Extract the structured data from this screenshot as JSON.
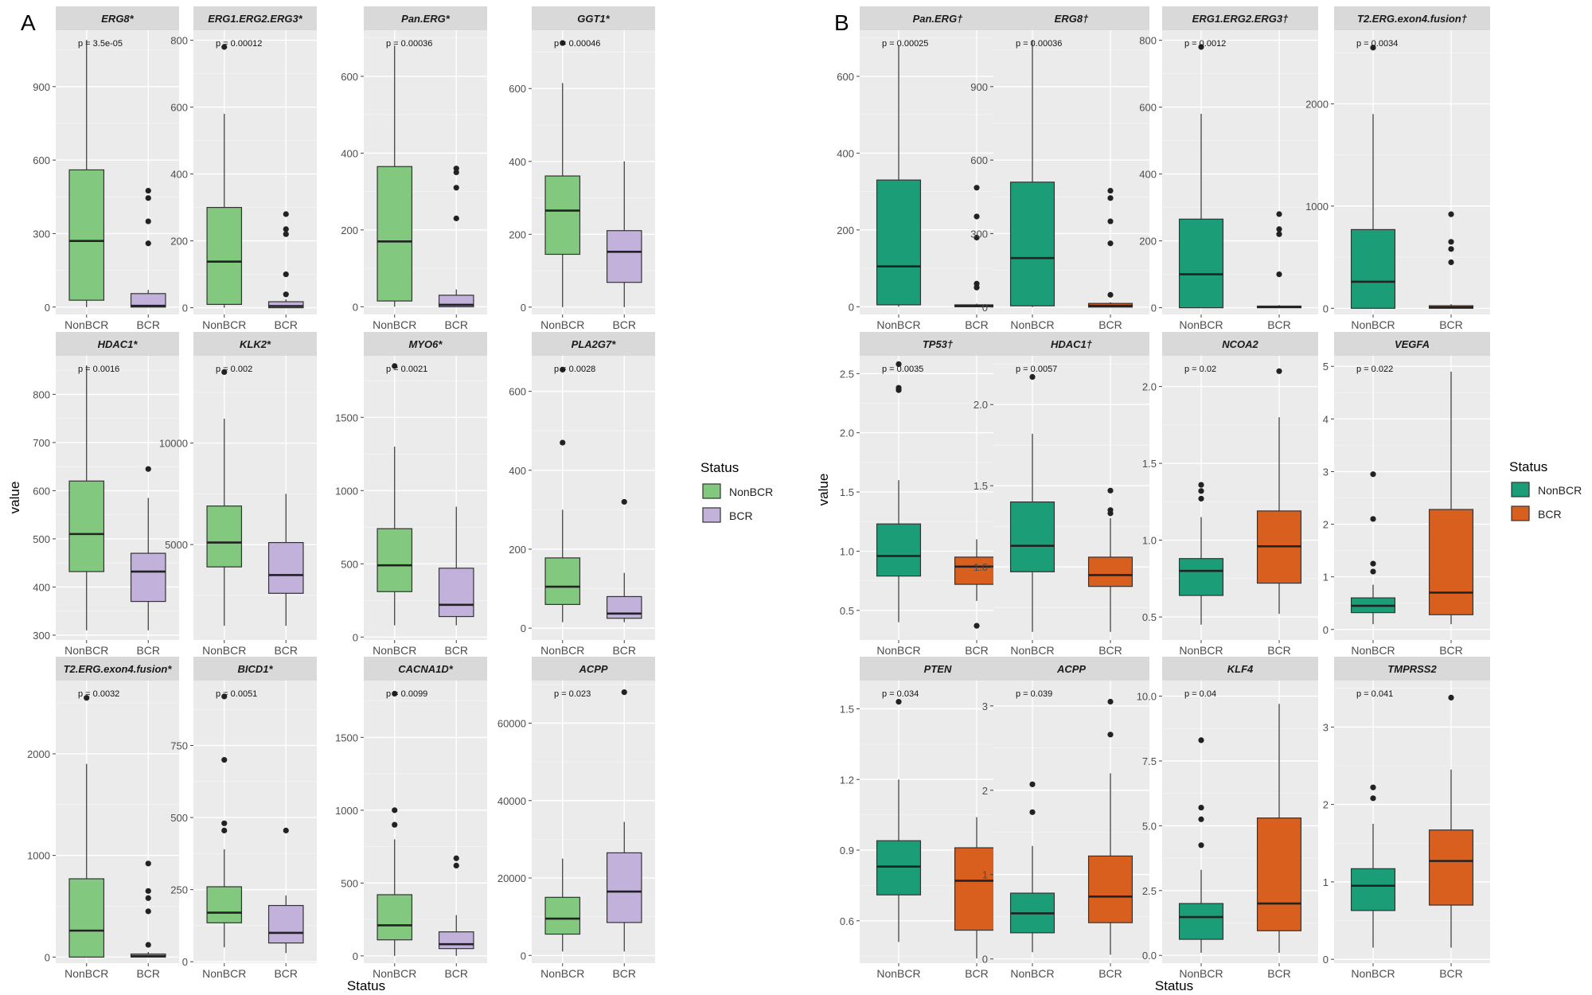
{
  "panels": {
    "A": {
      "label": "A",
      "y_title": "value",
      "x_title": "Status",
      "legend_title": "Status"
    },
    "B": {
      "label": "B",
      "y_title": "value",
      "x_title": "Status",
      "legend_title": "Status"
    }
  },
  "palette": {
    "A": {
      "NonBCR": "#82c97f",
      "BCR": "#c1b1db"
    },
    "B": {
      "NonBCR": "#1b9e77",
      "BCR": "#d95f1f"
    },
    "panel_bg": "#ebebeb",
    "strip_bg": "#d9d9d9",
    "grid": "#ffffff"
  },
  "chart_data": [
    {
      "panel": "A",
      "row": 0,
      "col": 0,
      "type": "boxplot",
      "title": "ERG8*",
      "pvalue": "p = 3.5e-05",
      "ylim": [
        -30,
        1130
      ],
      "yticks": [
        0,
        300,
        600,
        900
      ],
      "categories": [
        "NonBCR",
        "BCR"
      ],
      "boxes": [
        {
          "q1": 28,
          "median": 270,
          "q3": 560,
          "lower": 0,
          "upper": 1090,
          "outliers": []
        },
        {
          "q1": 0,
          "median": 5,
          "q3": 55,
          "lower": 0,
          "upper": 70,
          "outliers": [
            475,
            445,
            350,
            260
          ]
        }
      ]
    },
    {
      "panel": "A",
      "row": 0,
      "col": 1,
      "type": "boxplot",
      "title": "ERG1.ERG2.ERG3*",
      "pvalue": "p = 0.00012",
      "ylim": [
        -20,
        830
      ],
      "yticks": [
        0,
        200,
        400,
        600,
        800
      ],
      "categories": [
        "NonBCR",
        "BCR"
      ],
      "boxes": [
        {
          "q1": 10,
          "median": 138,
          "q3": 300,
          "lower": 0,
          "upper": 580,
          "outliers": [
            780
          ]
        },
        {
          "q1": 0,
          "median": 5,
          "q3": 18,
          "lower": 0,
          "upper": 25,
          "outliers": [
            280,
            235,
            220,
            100,
            40
          ]
        }
      ]
    },
    {
      "panel": "A",
      "row": 0,
      "col": 2,
      "type": "boxplot",
      "title": "Pan.ERG*",
      "pvalue": "p = 0.00036",
      "ylim": [
        -20,
        720
      ],
      "yticks": [
        0,
        200,
        400,
        600
      ],
      "categories": [
        "NonBCR",
        "BCR"
      ],
      "boxes": [
        {
          "q1": 15,
          "median": 170,
          "q3": 365,
          "lower": 0,
          "upper": 680,
          "outliers": []
        },
        {
          "q1": 0,
          "median": 5,
          "q3": 30,
          "lower": 0,
          "upper": 45,
          "outliers": [
            360,
            350,
            310,
            230
          ]
        }
      ]
    },
    {
      "panel": "A",
      "row": 0,
      "col": 3,
      "type": "boxplot",
      "title": "GGT1*",
      "pvalue": "p = 0.00046",
      "ylim": [
        -20,
        760
      ],
      "yticks": [
        0,
        200,
        400,
        600
      ],
      "categories": [
        "NonBCR",
        "BCR"
      ],
      "boxes": [
        {
          "q1": 145,
          "median": 265,
          "q3": 360,
          "lower": 0,
          "upper": 615,
          "outliers": [
            725
          ]
        },
        {
          "q1": 68,
          "median": 152,
          "q3": 210,
          "lower": 0,
          "upper": 400,
          "outliers": []
        }
      ]
    },
    {
      "panel": "A",
      "row": 1,
      "col": 0,
      "type": "boxplot",
      "title": "HDAC1*",
      "pvalue": "p = 0.0016",
      "ylim": [
        290,
        880
      ],
      "yticks": [
        300,
        400,
        500,
        600,
        700,
        800
      ],
      "categories": [
        "NonBCR",
        "BCR"
      ],
      "boxes": [
        {
          "q1": 432,
          "median": 510,
          "q3": 620,
          "lower": 310,
          "upper": 860,
          "outliers": []
        },
        {
          "q1": 370,
          "median": 432,
          "q3": 470,
          "lower": 310,
          "upper": 585,
          "outliers": [
            645
          ]
        }
      ]
    },
    {
      "panel": "A",
      "row": 1,
      "col": 1,
      "type": "boxplot",
      "title": "KLK2*",
      "pvalue": "p = 0.002",
      "ylim": [
        300,
        14300
      ],
      "yticks": [
        5000,
        10000
      ],
      "categories": [
        "NonBCR",
        "BCR"
      ],
      "boxes": [
        {
          "q1": 3900,
          "median": 5100,
          "q3": 6900,
          "lower": 1000,
          "upper": 11200,
          "outliers": [
            13500
          ]
        },
        {
          "q1": 2600,
          "median": 3500,
          "q3": 5100,
          "lower": 1000,
          "upper": 7500,
          "outliers": []
        }
      ]
    },
    {
      "panel": "A",
      "row": 1,
      "col": 2,
      "type": "boxplot",
      "title": "MYO6*",
      "pvalue": "p = 0.0021",
      "ylim": [
        -20,
        1920
      ],
      "yticks": [
        0,
        500,
        1000,
        1500
      ],
      "categories": [
        "NonBCR",
        "BCR"
      ],
      "boxes": [
        {
          "q1": 310,
          "median": 490,
          "q3": 740,
          "lower": 80,
          "upper": 1300,
          "outliers": [
            1850
          ]
        },
        {
          "q1": 140,
          "median": 220,
          "q3": 470,
          "lower": 80,
          "upper": 890,
          "outliers": []
        }
      ]
    },
    {
      "panel": "A",
      "row": 1,
      "col": 3,
      "type": "boxplot",
      "title": "PLA2G7*",
      "pvalue": "p = 0.0028",
      "ylim": [
        -30,
        690
      ],
      "yticks": [
        0,
        200,
        400,
        600
      ],
      "categories": [
        "NonBCR",
        "BCR"
      ],
      "boxes": [
        {
          "q1": 60,
          "median": 105,
          "q3": 178,
          "lower": 15,
          "upper": 300,
          "outliers": [
            655,
            470
          ]
        },
        {
          "q1": 25,
          "median": 37,
          "q3": 80,
          "lower": 15,
          "upper": 140,
          "outliers": [
            320
          ]
        }
      ]
    },
    {
      "panel": "A",
      "row": 2,
      "col": 0,
      "type": "boxplot",
      "title": "T2.ERG.exon4.fusion*",
      "pvalue": "p = 0.0032",
      "ylim": [
        -60,
        2720
      ],
      "yticks": [
        0,
        1000,
        2000
      ],
      "categories": [
        "NonBCR",
        "BCR"
      ],
      "boxes": [
        {
          "q1": 0,
          "median": 260,
          "q3": 770,
          "lower": 0,
          "upper": 1900,
          "outliers": [
            2550
          ]
        },
        {
          "q1": 0,
          "median": 10,
          "q3": 30,
          "lower": 0,
          "upper": 50,
          "outliers": [
            920,
            650,
            580,
            450,
            120
          ]
        }
      ]
    },
    {
      "panel": "A",
      "row": 2,
      "col": 1,
      "type": "boxplot",
      "title": "BICD1*",
      "pvalue": "p = 0.0051",
      "ylim": [
        -5,
        975
      ],
      "yticks": [
        0,
        250,
        500,
        750
      ],
      "categories": [
        "NonBCR",
        "BCR"
      ],
      "boxes": [
        {
          "q1": 135,
          "median": 170,
          "q3": 260,
          "lower": 50,
          "upper": 390,
          "outliers": [
            920,
            700,
            480,
            455
          ]
        },
        {
          "q1": 65,
          "median": 100,
          "q3": 195,
          "lower": 30,
          "upper": 230,
          "outliers": [
            455
          ]
        }
      ]
    },
    {
      "panel": "A",
      "row": 2,
      "col": 2,
      "type": "boxplot",
      "title": "CACNA1D*",
      "pvalue": "p = 0.0099",
      "ylim": [
        -50,
        1890
      ],
      "yticks": [
        0,
        500,
        1000,
        1500
      ],
      "categories": [
        "NonBCR",
        "BCR"
      ],
      "boxes": [
        {
          "q1": 110,
          "median": 210,
          "q3": 420,
          "lower": 0,
          "upper": 800,
          "outliers": [
            1800,
            1000,
            900
          ]
        },
        {
          "q1": 50,
          "median": 80,
          "q3": 165,
          "lower": 0,
          "upper": 280,
          "outliers": [
            670,
            620
          ]
        }
      ]
    },
    {
      "panel": "A",
      "row": 2,
      "col": 3,
      "type": "boxplot",
      "title": "ACPP",
      "pvalue": "p = 0.023",
      "ylim": [
        -2000,
        71000
      ],
      "yticks": [
        0,
        20000,
        40000,
        60000
      ],
      "categories": [
        "NonBCR",
        "BCR"
      ],
      "boxes": [
        {
          "q1": 5500,
          "median": 9500,
          "q3": 15000,
          "lower": 1000,
          "upper": 25000,
          "outliers": []
        },
        {
          "q1": 8500,
          "median": 16500,
          "q3": 26500,
          "lower": 1000,
          "upper": 34500,
          "outliers": [
            68000
          ]
        }
      ]
    },
    {
      "panel": "B",
      "row": 0,
      "col": 0,
      "type": "boxplot",
      "title": "Pan.ERG†",
      "pvalue": "p = 0.00025",
      "ylim": [
        -20,
        720
      ],
      "yticks": [
        0,
        200,
        400,
        600
      ],
      "categories": [
        "NonBCR",
        "BCR"
      ],
      "boxes": [
        {
          "q1": 5,
          "median": 105,
          "q3": 330,
          "lower": 0,
          "upper": 680,
          "outliers": []
        },
        {
          "q1": 0,
          "median": 2,
          "q3": 5,
          "lower": 0,
          "upper": 8,
          "outliers": [
            310,
            235,
            180,
            60,
            50
          ]
        }
      ]
    },
    {
      "panel": "B",
      "row": 0,
      "col": 1,
      "type": "boxplot",
      "title": "ERG8†",
      "pvalue": "p = 0.00036",
      "ylim": [
        -30,
        1130
      ],
      "yticks": [
        0,
        300,
        600,
        900
      ],
      "categories": [
        "NonBCR",
        "BCR"
      ],
      "boxes": [
        {
          "q1": 5,
          "median": 200,
          "q3": 510,
          "lower": 0,
          "upper": 1090,
          "outliers": []
        },
        {
          "q1": 0,
          "median": 5,
          "q3": 15,
          "lower": 0,
          "upper": 20,
          "outliers": [
            475,
            445,
            350,
            260,
            50
          ]
        }
      ]
    },
    {
      "panel": "B",
      "row": 0,
      "col": 2,
      "type": "boxplot",
      "title": "ERG1.ERG2.ERG3†",
      "pvalue": "p = 0.0012",
      "ylim": [
        -20,
        830
      ],
      "yticks": [
        0,
        200,
        400,
        600,
        800
      ],
      "categories": [
        "NonBCR",
        "BCR"
      ],
      "boxes": [
        {
          "q1": 0,
          "median": 100,
          "q3": 265,
          "lower": 0,
          "upper": 580,
          "outliers": [
            780
          ]
        },
        {
          "q1": 0,
          "median": 2,
          "q3": 5,
          "lower": 0,
          "upper": 8,
          "outliers": [
            280,
            235,
            220,
            100
          ]
        }
      ]
    },
    {
      "panel": "B",
      "row": 0,
      "col": 3,
      "type": "boxplot",
      "title": "T2.ERG.exon4.fusion†",
      "pvalue": "p = 0.0034",
      "ylim": [
        -60,
        2720
      ],
      "yticks": [
        0,
        1000,
        2000
      ],
      "categories": [
        "NonBCR",
        "BCR"
      ],
      "boxes": [
        {
          "q1": 0,
          "median": 260,
          "q3": 770,
          "lower": 0,
          "upper": 1900,
          "outliers": [
            2550
          ]
        },
        {
          "q1": 0,
          "median": 10,
          "q3": 25,
          "lower": 0,
          "upper": 40,
          "outliers": [
            920,
            650,
            580,
            450
          ]
        }
      ]
    },
    {
      "panel": "B",
      "row": 1,
      "col": 0,
      "type": "boxplot",
      "title": "TP53†",
      "pvalue": "p = 0.0035",
      "ylim": [
        0.25,
        2.65
      ],
      "yticks": [
        0.5,
        1.0,
        1.5,
        2.0,
        2.5
      ],
      "categories": [
        "NonBCR",
        "BCR"
      ],
      "boxes": [
        {
          "q1": 0.79,
          "median": 0.96,
          "q3": 1.23,
          "lower": 0.4,
          "upper": 1.6,
          "outliers": [
            2.58,
            2.38,
            2.36
          ]
        },
        {
          "q1": 0.72,
          "median": 0.87,
          "q3": 0.95,
          "lower": 0.58,
          "upper": 1.1,
          "outliers": [
            0.37
          ]
        }
      ]
    },
    {
      "panel": "B",
      "row": 1,
      "col": 1,
      "type": "boxplot",
      "title": "HDAC1†",
      "pvalue": "p = 0.0057",
      "ylim": [
        0.55,
        2.3
      ],
      "yticks": [
        1.0,
        1.5,
        2.0
      ],
      "categories": [
        "NonBCR",
        "BCR"
      ],
      "boxes": [
        {
          "q1": 0.97,
          "median": 1.13,
          "q3": 1.4,
          "lower": 0.6,
          "upper": 1.82,
          "outliers": [
            2.17
          ]
        },
        {
          "q1": 0.88,
          "median": 0.95,
          "q3": 1.06,
          "lower": 0.6,
          "upper": 1.3,
          "outliers": [
            1.47,
            1.35,
            1.33
          ]
        }
      ]
    },
    {
      "panel": "B",
      "row": 1,
      "col": 2,
      "type": "boxplot",
      "title": "NCOA2",
      "pvalue": "p = 0.02",
      "ylim": [
        0.35,
        2.2
      ],
      "yticks": [
        0.5,
        1.0,
        1.5,
        2.0
      ],
      "categories": [
        "NonBCR",
        "BCR"
      ],
      "boxes": [
        {
          "q1": 0.64,
          "median": 0.8,
          "q3": 0.88,
          "lower": 0.45,
          "upper": 1.15,
          "outliers": [
            1.36,
            1.32,
            1.27
          ]
        },
        {
          "q1": 0.72,
          "median": 0.96,
          "q3": 1.19,
          "lower": 0.52,
          "upper": 1.8,
          "outliers": [
            2.1
          ]
        }
      ]
    },
    {
      "panel": "B",
      "row": 1,
      "col": 3,
      "type": "boxplot",
      "title": "VEGFA",
      "pvalue": "p = 0.022",
      "ylim": [
        -0.2,
        5.2
      ],
      "yticks": [
        0,
        1,
        2,
        3,
        4,
        5
      ],
      "categories": [
        "NonBCR",
        "BCR"
      ],
      "boxes": [
        {
          "q1": 0.32,
          "median": 0.45,
          "q3": 0.6,
          "lower": 0.1,
          "upper": 0.85,
          "outliers": [
            2.95,
            2.1,
            1.25,
            1.1
          ]
        },
        {
          "q1": 0.28,
          "median": 0.7,
          "q3": 2.28,
          "lower": 0.1,
          "upper": 4.9,
          "outliers": []
        }
      ]
    },
    {
      "panel": "B",
      "row": 2,
      "col": 0,
      "type": "boxplot",
      "title": "PTEN",
      "pvalue": "p = 0.034",
      "ylim": [
        0.42,
        1.62
      ],
      "yticks": [
        0.6,
        0.9,
        1.2,
        1.5
      ],
      "categories": [
        "NonBCR",
        "BCR"
      ],
      "boxes": [
        {
          "q1": 0.71,
          "median": 0.83,
          "q3": 0.94,
          "lower": 0.51,
          "upper": 1.2,
          "outliers": [
            1.53
          ]
        },
        {
          "q1": 0.56,
          "median": 0.77,
          "q3": 0.91,
          "lower": 0.44,
          "upper": 1.04,
          "outliers": []
        }
      ]
    },
    {
      "panel": "B",
      "row": 2,
      "col": 1,
      "type": "boxplot",
      "title": "ACPP",
      "pvalue": "p = 0.039",
      "ylim": [
        -0.05,
        3.3
      ],
      "yticks": [
        0,
        1,
        2,
        3
      ],
      "categories": [
        "NonBCR",
        "BCR"
      ],
      "boxes": [
        {
          "q1": 0.31,
          "median": 0.54,
          "q3": 0.78,
          "lower": 0.08,
          "upper": 1.34,
          "outliers": [
            2.07,
            1.74
          ]
        },
        {
          "q1": 0.43,
          "median": 0.74,
          "q3": 1.22,
          "lower": 0.05,
          "upper": 2.2,
          "outliers": [
            3.05,
            2.66
          ]
        }
      ]
    },
    {
      "panel": "B",
      "row": 2,
      "col": 2,
      "type": "boxplot",
      "title": "KLF4",
      "pvalue": "p = 0.04",
      "ylim": [
        -0.3,
        10.6
      ],
      "yticks": [
        0.0,
        2.5,
        5.0,
        7.5,
        10.0
      ],
      "categories": [
        "NonBCR",
        "BCR"
      ],
      "boxes": [
        {
          "q1": 0.62,
          "median": 1.48,
          "q3": 2.0,
          "lower": 0.1,
          "upper": 3.3,
          "outliers": [
            8.3,
            5.7,
            5.25,
            4.25
          ]
        },
        {
          "q1": 0.95,
          "median": 2.0,
          "q3": 5.3,
          "lower": 0.1,
          "upper": 9.7,
          "outliers": []
        }
      ]
    },
    {
      "panel": "B",
      "row": 2,
      "col": 3,
      "type": "boxplot",
      "title": "TMPRSS2",
      "pvalue": "p = 0.041",
      "ylim": [
        -0.05,
        3.6
      ],
      "yticks": [
        0,
        1,
        2,
        3
      ],
      "categories": [
        "NonBCR",
        "BCR"
      ],
      "boxes": [
        {
          "q1": 0.63,
          "median": 0.95,
          "q3": 1.17,
          "lower": 0.15,
          "upper": 1.75,
          "outliers": [
            2.22,
            2.08
          ]
        },
        {
          "q1": 0.7,
          "median": 1.27,
          "q3": 1.67,
          "lower": 0.15,
          "upper": 2.45,
          "outliers": [
            3.38
          ]
        }
      ]
    }
  ]
}
